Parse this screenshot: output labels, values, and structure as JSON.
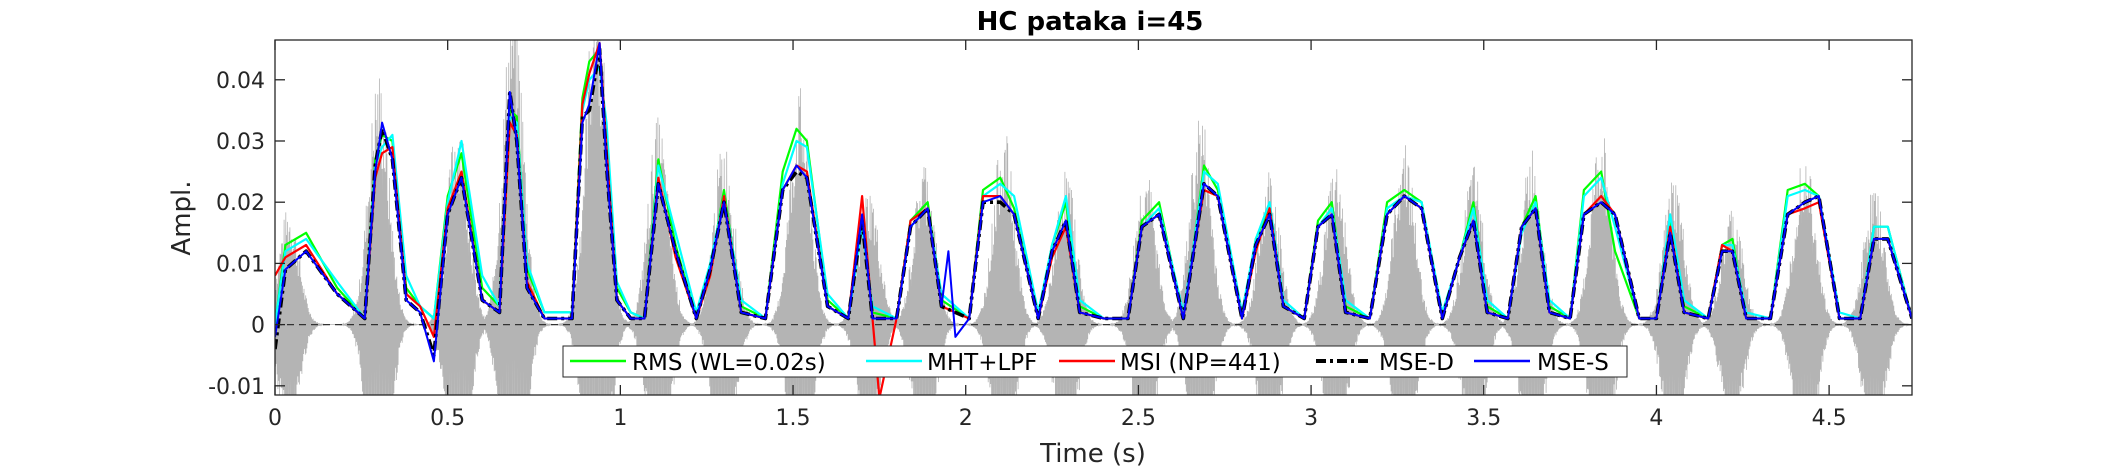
{
  "chart_data": {
    "type": "line",
    "title": "HC pataka i=45",
    "xlabel": "Time (s)",
    "ylabel": "Ampl.",
    "xlim": [
      0,
      4.74
    ],
    "ylim": [
      -0.0115,
      0.0465
    ],
    "xticks": [
      0,
      0.5,
      1,
      1.5,
      2,
      2.5,
      3,
      3.5,
      4,
      4.5
    ],
    "xtick_labels": [
      "0",
      "0.5",
      "1",
      "1.5",
      "2",
      "2.5",
      "3",
      "3.5",
      "4",
      "4.5"
    ],
    "yticks": [
      -0.01,
      0,
      0.01,
      0.02,
      0.03,
      0.04
    ],
    "ytick_labels": [
      "-0.01",
      "0",
      "0.01",
      "0.02",
      "0.03",
      "0.04"
    ],
    "grid": false,
    "legend_position": "bottom-center",
    "waveform_color": "#b4b4b4",
    "waveform_peaks": [
      {
        "t": 0.04,
        "amp": 0.012
      },
      {
        "t": 0.3,
        "amp": 0.026
      },
      {
        "t": 0.53,
        "amp": 0.022
      },
      {
        "t": 0.69,
        "amp": 0.034
      },
      {
        "t": 0.93,
        "amp": 0.036
      },
      {
        "t": 1.11,
        "amp": 0.021
      },
      {
        "t": 1.3,
        "amp": 0.019
      },
      {
        "t": 1.52,
        "amp": 0.024
      },
      {
        "t": 1.72,
        "amp": 0.014
      },
      {
        "t": 1.88,
        "amp": 0.017
      },
      {
        "t": 2.11,
        "amp": 0.02
      },
      {
        "t": 2.29,
        "amp": 0.016
      },
      {
        "t": 2.52,
        "amp": 0.016
      },
      {
        "t": 2.68,
        "amp": 0.022
      },
      {
        "t": 2.88,
        "amp": 0.016
      },
      {
        "t": 3.07,
        "amp": 0.017
      },
      {
        "t": 3.27,
        "amp": 0.019
      },
      {
        "t": 3.47,
        "amp": 0.016
      },
      {
        "t": 3.64,
        "amp": 0.018
      },
      {
        "t": 3.84,
        "amp": 0.02
      },
      {
        "t": 4.05,
        "amp": 0.015
      },
      {
        "t": 4.22,
        "amp": 0.012
      },
      {
        "t": 4.43,
        "amp": 0.019
      },
      {
        "t": 4.63,
        "amp": 0.014
      }
    ],
    "series": [
      {
        "name": "RMS (WL=0.02s)",
        "color": "#00ff00",
        "style": "solid",
        "t": [
          0,
          0.03,
          0.09,
          0.18,
          0.26,
          0.29,
          0.31,
          0.34,
          0.38,
          0.42,
          0.46,
          0.5,
          0.54,
          0.6,
          0.65,
          0.68,
          0.7,
          0.73,
          0.78,
          0.86,
          0.89,
          0.91,
          0.94,
          0.96,
          0.99,
          1.03,
          1.07,
          1.11,
          1.16,
          1.22,
          1.26,
          1.3,
          1.35,
          1.42,
          1.47,
          1.51,
          1.54,
          1.6,
          1.66,
          1.7,
          1.73,
          1.8,
          1.84,
          1.89,
          1.93,
          2.01,
          2.05,
          2.1,
          2.14,
          2.21,
          2.25,
          2.29,
          2.33,
          2.4,
          2.47,
          2.51,
          2.56,
          2.63,
          2.66,
          2.69,
          2.73,
          2.8,
          2.84,
          2.88,
          2.92,
          2.98,
          3.02,
          3.06,
          3.1,
          3.17,
          3.22,
          3.27,
          3.32,
          3.38,
          3.43,
          3.47,
          3.51,
          3.57,
          3.61,
          3.65,
          3.69,
          3.75,
          3.79,
          3.84,
          3.88,
          3.95,
          4.0,
          4.04,
          4.08,
          4.15,
          4.19,
          4.22,
          4.26,
          4.33,
          4.38,
          4.43,
          4.47,
          4.53,
          4.59,
          4.63,
          4.67,
          4.74
        ],
        "y": [
          0,
          0.013,
          0.015,
          0.006,
          0.001,
          0.027,
          0.031,
          0.03,
          0.006,
          0.003,
          0.001,
          0.021,
          0.028,
          0.006,
          0.003,
          0.035,
          0.034,
          0.009,
          0.002,
          0.002,
          0.037,
          0.043,
          0.045,
          0.03,
          0.006,
          0.002,
          0.001,
          0.027,
          0.013,
          0.001,
          0.009,
          0.022,
          0.003,
          0.001,
          0.025,
          0.032,
          0.03,
          0.004,
          0.001,
          0.017,
          0.002,
          0.001,
          0.017,
          0.02,
          0.004,
          0.001,
          0.022,
          0.024,
          0.019,
          0.001,
          0.013,
          0.02,
          0.003,
          0.001,
          0.001,
          0.017,
          0.02,
          0.001,
          0.013,
          0.026,
          0.022,
          0.001,
          0.014,
          0.019,
          0.003,
          0.001,
          0.017,
          0.02,
          0.003,
          0.001,
          0.02,
          0.022,
          0.02,
          0.001,
          0.011,
          0.02,
          0.003,
          0.001,
          0.016,
          0.021,
          0.003,
          0.001,
          0.022,
          0.025,
          0.012,
          0.001,
          0.001,
          0.017,
          0.003,
          0.001,
          0.013,
          0.014,
          0.001,
          0.001,
          0.022,
          0.023,
          0.021,
          0.001,
          0.001,
          0.016,
          0.016,
          0.001
        ]
      },
      {
        "name": "MHT+LPF",
        "color": "#00ffff",
        "style": "solid",
        "t": [
          0,
          0.03,
          0.09,
          0.18,
          0.26,
          0.29,
          0.31,
          0.34,
          0.38,
          0.42,
          0.46,
          0.5,
          0.54,
          0.6,
          0.65,
          0.68,
          0.7,
          0.73,
          0.78,
          0.86,
          0.89,
          0.91,
          0.94,
          0.96,
          0.99,
          1.03,
          1.07,
          1.11,
          1.16,
          1.22,
          1.26,
          1.3,
          1.35,
          1.42,
          1.47,
          1.51,
          1.54,
          1.6,
          1.66,
          1.7,
          1.73,
          1.8,
          1.84,
          1.89,
          1.93,
          2.01,
          2.05,
          2.1,
          2.14,
          2.21,
          2.25,
          2.29,
          2.33,
          2.4,
          2.47,
          2.51,
          2.56,
          2.63,
          2.66,
          2.69,
          2.73,
          2.8,
          2.84,
          2.88,
          2.92,
          2.98,
          3.02,
          3.06,
          3.1,
          3.17,
          3.22,
          3.27,
          3.32,
          3.38,
          3.43,
          3.47,
          3.51,
          3.57,
          3.61,
          3.65,
          3.69,
          3.75,
          3.79,
          3.84,
          3.88,
          3.95,
          4.0,
          4.04,
          4.08,
          4.15,
          4.19,
          4.22,
          4.26,
          4.33,
          4.38,
          4.43,
          4.47,
          4.53,
          4.59,
          4.63,
          4.67,
          4.74
        ],
        "y": [
          0,
          0.012,
          0.014,
          0.007,
          0.001,
          0.026,
          0.029,
          0.031,
          0.008,
          0.003,
          0.001,
          0.02,
          0.03,
          0.008,
          0.003,
          0.034,
          0.033,
          0.01,
          0.002,
          0.002,
          0.035,
          0.04,
          0.042,
          0.033,
          0.007,
          0.002,
          0.001,
          0.026,
          0.015,
          0.002,
          0.01,
          0.021,
          0.004,
          0.001,
          0.023,
          0.03,
          0.029,
          0.005,
          0.001,
          0.016,
          0.003,
          0.001,
          0.016,
          0.019,
          0.005,
          0.001,
          0.021,
          0.023,
          0.021,
          0.002,
          0.013,
          0.021,
          0.004,
          0.001,
          0.001,
          0.016,
          0.019,
          0.002,
          0.013,
          0.025,
          0.023,
          0.002,
          0.014,
          0.02,
          0.004,
          0.001,
          0.016,
          0.019,
          0.004,
          0.001,
          0.019,
          0.021,
          0.02,
          0.002,
          0.011,
          0.019,
          0.004,
          0.001,
          0.015,
          0.02,
          0.004,
          0.001,
          0.021,
          0.024,
          0.016,
          0.001,
          0.001,
          0.018,
          0.004,
          0.001,
          0.013,
          0.013,
          0.002,
          0.001,
          0.021,
          0.022,
          0.021,
          0.002,
          0.001,
          0.016,
          0.016,
          0.001
        ]
      },
      {
        "name": "MSI (NP=441)",
        "color": "#ff0000",
        "style": "solid",
        "t": [
          0,
          0.03,
          0.09,
          0.18,
          0.26,
          0.29,
          0.31,
          0.34,
          0.38,
          0.42,
          0.46,
          0.5,
          0.54,
          0.6,
          0.65,
          0.68,
          0.7,
          0.73,
          0.78,
          0.86,
          0.89,
          0.91,
          0.94,
          0.96,
          0.99,
          1.03,
          1.07,
          1.11,
          1.16,
          1.22,
          1.26,
          1.3,
          1.35,
          1.42,
          1.47,
          1.51,
          1.54,
          1.6,
          1.66,
          1.7,
          1.73,
          1.75,
          1.8,
          1.84,
          1.89,
          1.93,
          2.01,
          2.05,
          2.1,
          2.14,
          2.21,
          2.25,
          2.29,
          2.33,
          2.4,
          2.47,
          2.51,
          2.56,
          2.63,
          2.66,
          2.69,
          2.73,
          2.8,
          2.84,
          2.88,
          2.92,
          2.98,
          3.02,
          3.06,
          3.1,
          3.17,
          3.22,
          3.27,
          3.32,
          3.38,
          3.43,
          3.47,
          3.51,
          3.57,
          3.61,
          3.65,
          3.69,
          3.75,
          3.79,
          3.84,
          3.88,
          3.95,
          4.0,
          4.04,
          4.08,
          4.15,
          4.19,
          4.22,
          4.26,
          4.33,
          4.38,
          4.43,
          4.47,
          4.53,
          4.59,
          4.63,
          4.67,
          4.74
        ],
        "y": [
          0.008,
          0.011,
          0.013,
          0.005,
          0.001,
          0.024,
          0.028,
          0.029,
          0.005,
          0.003,
          -0.002,
          0.019,
          0.025,
          0.004,
          0.002,
          0.033,
          0.031,
          0.007,
          0.001,
          0.001,
          0.036,
          0.041,
          0.046,
          0.029,
          0.004,
          0.001,
          0.001,
          0.024,
          0.011,
          0.001,
          0.008,
          0.021,
          0.002,
          0.001,
          0.022,
          0.026,
          0.025,
          0.003,
          0.001,
          0.021,
          0.001,
          -0.012,
          0.001,
          0.017,
          0.019,
          0.003,
          0.001,
          0.021,
          0.021,
          0.018,
          0.001,
          0.011,
          0.016,
          0.002,
          0.001,
          0.001,
          0.016,
          0.018,
          0.001,
          0.012,
          0.022,
          0.021,
          0.001,
          0.012,
          0.019,
          0.003,
          0.001,
          0.016,
          0.018,
          0.002,
          0.001,
          0.018,
          0.021,
          0.019,
          0.001,
          0.011,
          0.017,
          0.002,
          0.001,
          0.016,
          0.019,
          0.002,
          0.001,
          0.018,
          0.021,
          0.018,
          0.001,
          0.001,
          0.016,
          0.002,
          0.001,
          0.013,
          0.012,
          0.001,
          0.001,
          0.018,
          0.019,
          0.02,
          0.001,
          0.001,
          0.014,
          0.014,
          0.001
        ]
      },
      {
        "name": "MSE-D",
        "color": "#000000",
        "style": "dashdot",
        "t": [
          0,
          0.03,
          0.09,
          0.18,
          0.26,
          0.29,
          0.31,
          0.34,
          0.38,
          0.42,
          0.46,
          0.5,
          0.54,
          0.6,
          0.65,
          0.68,
          0.7,
          0.73,
          0.78,
          0.86,
          0.89,
          0.91,
          0.94,
          0.96,
          0.99,
          1.03,
          1.07,
          1.11,
          1.16,
          1.22,
          1.26,
          1.3,
          1.35,
          1.42,
          1.47,
          1.51,
          1.54,
          1.6,
          1.66,
          1.7,
          1.73,
          1.8,
          1.84,
          1.89,
          1.93,
          2.01,
          2.05,
          2.1,
          2.14,
          2.21,
          2.25,
          2.29,
          2.33,
          2.4,
          2.47,
          2.51,
          2.56,
          2.63,
          2.66,
          2.69,
          2.73,
          2.8,
          2.84,
          2.88,
          2.92,
          2.98,
          3.02,
          3.06,
          3.1,
          3.17,
          3.22,
          3.27,
          3.32,
          3.38,
          3.43,
          3.47,
          3.51,
          3.57,
          3.61,
          3.65,
          3.69,
          3.75,
          3.79,
          3.84,
          3.88,
          3.95,
          4.0,
          4.04,
          4.08,
          4.15,
          4.19,
          4.22,
          4.26,
          4.33,
          4.38,
          4.43,
          4.47,
          4.53,
          4.59,
          4.63,
          4.67,
          4.74
        ],
        "y": [
          -0.004,
          0.009,
          0.012,
          0.005,
          0.001,
          0.026,
          0.032,
          0.027,
          0.004,
          0.002,
          -0.005,
          0.018,
          0.024,
          0.004,
          0.002,
          0.038,
          0.03,
          0.006,
          0.001,
          0.001,
          0.034,
          0.035,
          0.045,
          0.026,
          0.004,
          0.001,
          0.001,
          0.023,
          0.012,
          0.001,
          0.009,
          0.02,
          0.002,
          0.001,
          0.022,
          0.025,
          0.024,
          0.003,
          0.001,
          0.017,
          0.001,
          0.001,
          0.016,
          0.019,
          0.003,
          0.001,
          0.02,
          0.02,
          0.018,
          0.001,
          0.012,
          0.017,
          0.002,
          0.001,
          0.001,
          0.016,
          0.018,
          0.001,
          0.012,
          0.023,
          0.021,
          0.001,
          0.013,
          0.018,
          0.003,
          0.001,
          0.016,
          0.018,
          0.002,
          0.001,
          0.018,
          0.021,
          0.019,
          0.001,
          0.011,
          0.017,
          0.002,
          0.001,
          0.016,
          0.019,
          0.002,
          0.001,
          0.018,
          0.02,
          0.018,
          0.001,
          0.001,
          0.015,
          0.002,
          0.001,
          0.012,
          0.012,
          0.001,
          0.001,
          0.018,
          0.02,
          0.021,
          0.001,
          0.001,
          0.014,
          0.014,
          0.001
        ]
      },
      {
        "name": "MSE-S",
        "color": "#0000ff",
        "style": "solid",
        "t": [
          0,
          0.03,
          0.09,
          0.18,
          0.26,
          0.29,
          0.31,
          0.34,
          0.38,
          0.42,
          0.46,
          0.5,
          0.54,
          0.6,
          0.65,
          0.68,
          0.7,
          0.73,
          0.78,
          0.86,
          0.89,
          0.91,
          0.94,
          0.96,
          0.99,
          1.03,
          1.07,
          1.11,
          1.16,
          1.22,
          1.26,
          1.3,
          1.35,
          1.42,
          1.47,
          1.51,
          1.54,
          1.6,
          1.66,
          1.7,
          1.73,
          1.8,
          1.84,
          1.89,
          1.93,
          1.95,
          1.97,
          2.01,
          2.05,
          2.1,
          2.14,
          2.21,
          2.25,
          2.29,
          2.33,
          2.4,
          2.47,
          2.51,
          2.56,
          2.63,
          2.66,
          2.69,
          2.73,
          2.8,
          2.84,
          2.88,
          2.92,
          2.98,
          3.02,
          3.06,
          3.1,
          3.17,
          3.22,
          3.27,
          3.32,
          3.38,
          3.43,
          3.47,
          3.51,
          3.57,
          3.61,
          3.65,
          3.69,
          3.75,
          3.79,
          3.84,
          3.88,
          3.95,
          4.0,
          4.04,
          4.08,
          4.15,
          4.19,
          4.22,
          4.26,
          4.33,
          4.38,
          4.43,
          4.47,
          4.53,
          4.59,
          4.63,
          4.67,
          4.74
        ],
        "y": [
          -0.002,
          0.009,
          0.012,
          0.005,
          0.001,
          0.025,
          0.033,
          0.027,
          0.004,
          0.002,
          -0.006,
          0.018,
          0.024,
          0.004,
          0.002,
          0.038,
          0.03,
          0.006,
          0.001,
          0.001,
          0.033,
          0.036,
          0.046,
          0.026,
          0.004,
          0.001,
          0.001,
          0.023,
          0.012,
          0.001,
          0.009,
          0.02,
          0.002,
          0.001,
          0.022,
          0.026,
          0.024,
          0.003,
          0.001,
          0.018,
          0.001,
          0.001,
          0.016,
          0.019,
          0.003,
          0.012,
          -0.002,
          0.001,
          0.02,
          0.021,
          0.018,
          0.001,
          0.012,
          0.017,
          0.002,
          0.001,
          0.001,
          0.016,
          0.018,
          0.001,
          0.012,
          0.023,
          0.021,
          0.001,
          0.013,
          0.018,
          0.003,
          0.001,
          0.016,
          0.018,
          0.002,
          0.001,
          0.018,
          0.021,
          0.019,
          0.001,
          0.011,
          0.017,
          0.002,
          0.001,
          0.016,
          0.019,
          0.002,
          0.001,
          0.018,
          0.02,
          0.018,
          0.001,
          0.001,
          0.015,
          0.002,
          0.001,
          0.012,
          0.012,
          0.001,
          0.001,
          0.018,
          0.02,
          0.021,
          0.001,
          0.001,
          0.014,
          0.014,
          0.001
        ]
      }
    ]
  }
}
